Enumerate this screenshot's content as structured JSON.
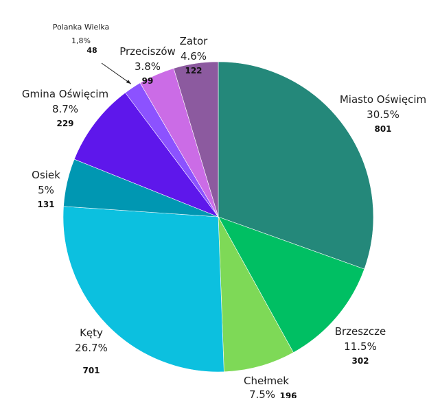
{
  "chart_data": {
    "type": "pie",
    "title": "",
    "start": "top",
    "direction": "clockwise",
    "slices": [
      {
        "name": "Miasto Oświęcim",
        "percent_label": "30.5%",
        "value_label": "801",
        "value": 801,
        "color": "#24887a"
      },
      {
        "name": "Brzeszcze",
        "percent_label": "11.5%",
        "value_label": "302",
        "value": 302,
        "color": "#00bf63"
      },
      {
        "name": "Chełmek",
        "percent_label": "7.5%",
        "value_label": "196",
        "value": 196,
        "color": "#7ed957"
      },
      {
        "name": "Kęty",
        "percent_label": "26.7%",
        "value_label": "701",
        "value": 701,
        "color": "#0cc0df"
      },
      {
        "name": "Osiek",
        "percent_label": "5%",
        "value_label": "131",
        "value": 131,
        "color": "#0097b2"
      },
      {
        "name": "Gmina Oświęcim",
        "percent_label": "8.7%",
        "value_label": "229",
        "value": 229,
        "color": "#5e17eb"
      },
      {
        "name": "Polanka Wielka",
        "percent_label": "1,8%",
        "value_label": "48",
        "value": 48,
        "color": "#8c52ff"
      },
      {
        "name": "Przeciszów",
        "percent_label": "3.8%",
        "value_label": "99",
        "value": 99,
        "color": "#cb6ce6"
      },
      {
        "name": "Zator",
        "percent_label": "4.6%",
        "value_label": "122",
        "value": 122,
        "color": "#8c5a9f"
      }
    ]
  }
}
